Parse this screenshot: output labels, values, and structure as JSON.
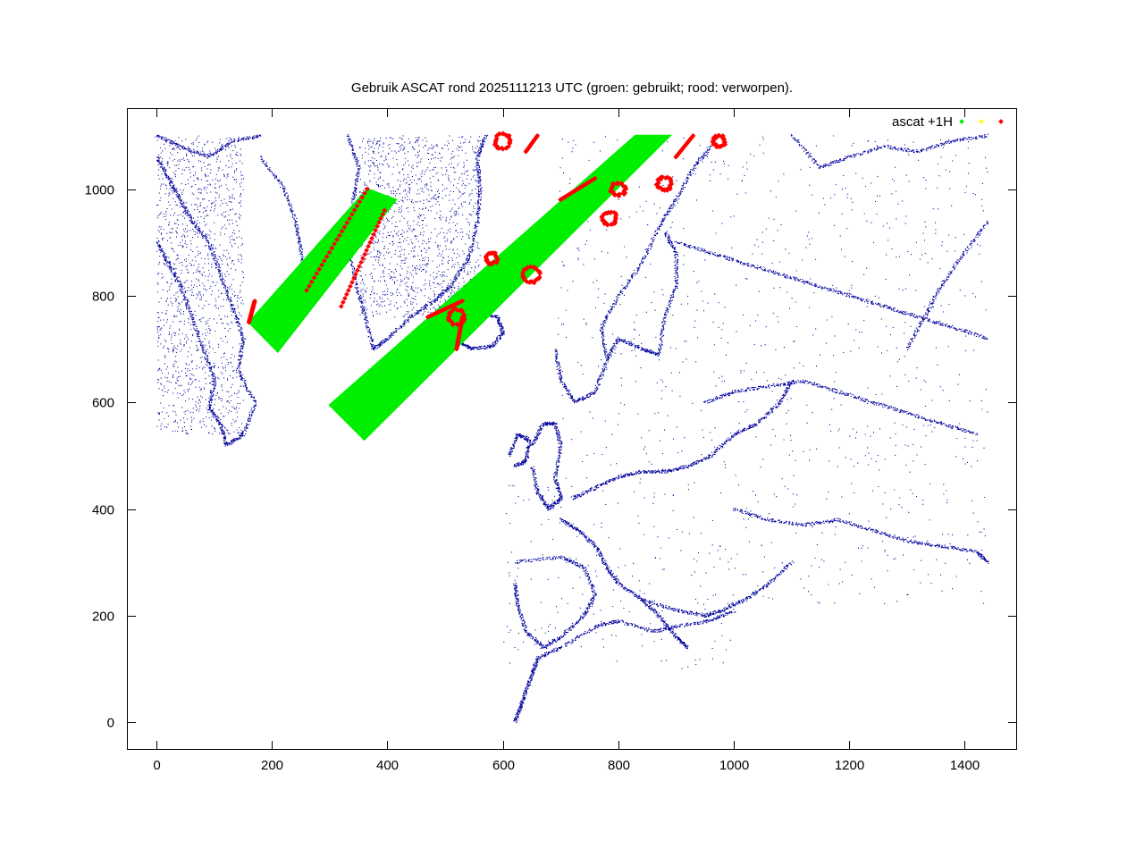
{
  "chart_data": {
    "type": "scatter",
    "title": "Gebruik ASCAT rond 2025111213 UTC (groen: gebruikt; rood: verworpen).",
    "xlabel": "",
    "ylabel": "",
    "xlim": [
      -50,
      1490
    ],
    "ylim": [
      -50,
      1150
    ],
    "x_ticks": [
      0,
      200,
      400,
      600,
      800,
      1000,
      1200,
      1400
    ],
    "y_ticks": [
      0,
      200,
      400,
      600,
      800,
      1000
    ],
    "x_tick_labels": [
      "0",
      "200",
      "400",
      "600",
      "800",
      "1000",
      "1200",
      "1400"
    ],
    "y_tick_labels": [
      "0",
      "200",
      "400",
      "600",
      "800",
      "1000"
    ],
    "grid": false,
    "legend_position": "top-right",
    "legend_title": "ascat +1H",
    "series": [
      {
        "color": "#00ee00",
        "role": "used",
        "swaths": [
          {
            "corners": [
              [
                160,
                750
              ],
              [
                210,
                695
              ],
              [
                415,
                980
              ],
              [
                365,
                1000
              ]
            ]
          },
          {
            "corners": [
              [
                300,
                595
              ],
              [
                360,
                530
              ],
              [
                890,
                1100
              ],
              [
                830,
                1100
              ]
            ]
          }
        ]
      },
      {
        "color": "#ffff00",
        "role": "flag",
        "swaths": []
      },
      {
        "color": "#ff0000",
        "role": "rejected",
        "clusters": [
          {
            "x": 650,
            "y": 840,
            "r": 15
          },
          {
            "x": 785,
            "y": 945,
            "r": 12
          },
          {
            "x": 800,
            "y": 1000,
            "r": 12
          },
          {
            "x": 880,
            "y": 1010,
            "r": 12
          },
          {
            "x": 600,
            "y": 1090,
            "r": 14
          },
          {
            "x": 520,
            "y": 760,
            "r": 14
          },
          {
            "x": 975,
            "y": 1090,
            "r": 10
          },
          {
            "x": 580,
            "y": 870,
            "r": 10
          }
        ]
      }
    ],
    "coastline_color": "#00009c"
  }
}
